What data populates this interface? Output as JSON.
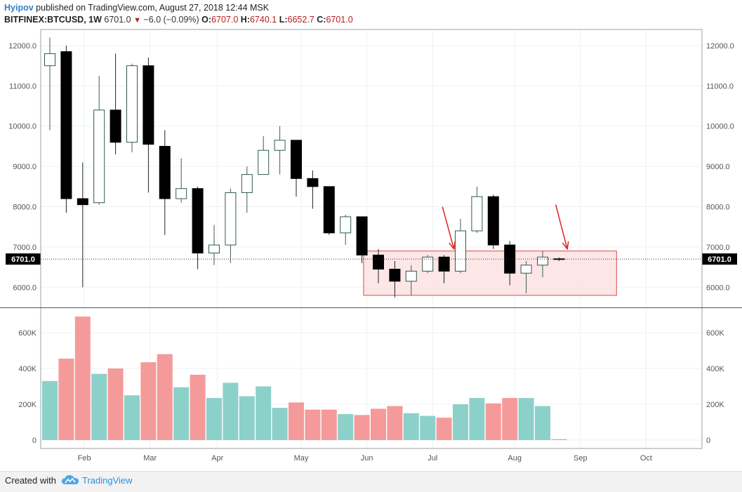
{
  "header": {
    "author": "Hyipov",
    "published_text": "published on TradingView.com, August 27, 2018 12:44 MSK",
    "symbol_line": "BITFINEX:BTCUSD, 1W",
    "last_value": "6701.0",
    "change": "−6.0 (−0.09%)",
    "o_label": "O:",
    "o_value": "6707.0",
    "h_label": "H:",
    "h_value": "6740.1",
    "l_label": "L:",
    "l_value": "6652.7",
    "c_label": "C:",
    "c_value": "6701.0"
  },
  "footer": {
    "created_with": "Created with",
    "brand": "TradingView"
  },
  "colors": {
    "up": "#ffffff",
    "down": "#000000",
    "vol_up": "#80cbc4",
    "vol_down": "#f48f8f",
    "arrow": "#e32222",
    "zone_fill": "#fde2e2",
    "zone_stroke": "#e04848"
  },
  "chart_data": {
    "type": "candlestick",
    "interval": "1W",
    "price_axis": {
      "min": 5500,
      "max": 12400,
      "ticks": [
        6000,
        7000,
        8000,
        9000,
        10000,
        11000,
        12000
      ],
      "tick_labels": [
        "6000.0",
        "7000.0",
        "8000.0",
        "9000.0",
        "10000.0",
        "11000.0",
        "12000.0"
      ]
    },
    "volume_axis": {
      "min": 0,
      "max": 750000,
      "ticks": [
        0,
        200000,
        400000,
        600000
      ],
      "tick_labels": [
        "0",
        "200K",
        "400K",
        "600K"
      ]
    },
    "x_ticks": [
      {
        "label": "Feb",
        "week": 2.1
      },
      {
        "label": "Mar",
        "week": 6.1
      },
      {
        "label": "Apr",
        "week": 10.2
      },
      {
        "label": "May",
        "week": 15.3
      },
      {
        "label": "Jun",
        "week": 19.3
      },
      {
        "label": "Jul",
        "week": 23.3
      },
      {
        "label": "Aug",
        "week": 28.3
      },
      {
        "label": "Sep",
        "week": 32.3
      },
      {
        "label": "Oct",
        "week": 36.3
      }
    ],
    "last_price": 6701.0,
    "last_price_label": "6701.0",
    "candles": [
      {
        "o": 11500,
        "h": 12200,
        "l": 9900,
        "c": 11800
      },
      {
        "o": 11850,
        "h": 12000,
        "l": 7850,
        "c": 8200
      },
      {
        "o": 8200,
        "h": 9100,
        "l": 6000,
        "c": 8050
      },
      {
        "o": 8100,
        "h": 11250,
        "l": 8050,
        "c": 10400
      },
      {
        "o": 10400,
        "h": 11800,
        "l": 9300,
        "c": 9600
      },
      {
        "o": 9600,
        "h": 11550,
        "l": 9350,
        "c": 11500
      },
      {
        "o": 11500,
        "h": 11700,
        "l": 8350,
        "c": 9550
      },
      {
        "o": 9500,
        "h": 9900,
        "l": 7300,
        "c": 8200
      },
      {
        "o": 8200,
        "h": 9200,
        "l": 8100,
        "c": 8450
      },
      {
        "o": 8450,
        "h": 8500,
        "l": 6450,
        "c": 6850
      },
      {
        "o": 6850,
        "h": 7550,
        "l": 6550,
        "c": 7050
      },
      {
        "o": 7050,
        "h": 8450,
        "l": 6600,
        "c": 8350
      },
      {
        "o": 8350,
        "h": 9000,
        "l": 7850,
        "c": 8800
      },
      {
        "o": 8800,
        "h": 9750,
        "l": 8800,
        "c": 9400
      },
      {
        "o": 9400,
        "h": 10000,
        "l": 8800,
        "c": 9650
      },
      {
        "o": 9650,
        "h": 9650,
        "l": 8250,
        "c": 8700
      },
      {
        "o": 8700,
        "h": 8900,
        "l": 7950,
        "c": 8500
      },
      {
        "o": 8500,
        "h": 8500,
        "l": 7300,
        "c": 7350
      },
      {
        "o": 7350,
        "h": 7800,
        "l": 7050,
        "c": 7750
      },
      {
        "o": 7750,
        "h": 7750,
        "l": 6600,
        "c": 6800
      },
      {
        "o": 6800,
        "h": 6950,
        "l": 6100,
        "c": 6450
      },
      {
        "o": 6450,
        "h": 6650,
        "l": 5750,
        "c": 6150
      },
      {
        "o": 6150,
        "h": 6550,
        "l": 5800,
        "c": 6400
      },
      {
        "o": 6400,
        "h": 6800,
        "l": 6350,
        "c": 6750
      },
      {
        "o": 6750,
        "h": 6800,
        "l": 6100,
        "c": 6400
      },
      {
        "o": 6400,
        "h": 7700,
        "l": 6350,
        "c": 7400
      },
      {
        "o": 7400,
        "h": 8500,
        "l": 7350,
        "c": 8250
      },
      {
        "o": 8250,
        "h": 8300,
        "l": 6950,
        "c": 7050
      },
      {
        "o": 7050,
        "h": 7150,
        "l": 6050,
        "c": 6350
      },
      {
        "o": 6350,
        "h": 6650,
        "l": 5850,
        "c": 6550
      },
      {
        "o": 6550,
        "h": 6900,
        "l": 6250,
        "c": 6750
      },
      {
        "o": 6707,
        "h": 6740.1,
        "l": 6652.7,
        "c": 6701
      }
    ],
    "volumes": [
      330000,
      455000,
      690000,
      370000,
      400000,
      250000,
      435000,
      480000,
      295000,
      365000,
      235000,
      320000,
      245000,
      300000,
      180000,
      210000,
      170000,
      170000,
      145000,
      140000,
      175000,
      190000,
      150000,
      135000,
      125000,
      200000,
      235000,
      205000,
      235000,
      235000,
      190000,
      5000
    ],
    "support_zone": {
      "price_low": 5800,
      "price_high": 6900,
      "week_start": 19.1,
      "week_end": 34.5
    },
    "arrows": [
      {
        "from_week": 23.9,
        "from_price": 8000,
        "to_week": 24.6,
        "to_price": 6950
      },
      {
        "from_week": 30.8,
        "from_price": 8050,
        "to_week": 31.5,
        "to_price": 6950
      }
    ],
    "title": "",
    "xlabel": "",
    "ylabel": ""
  }
}
